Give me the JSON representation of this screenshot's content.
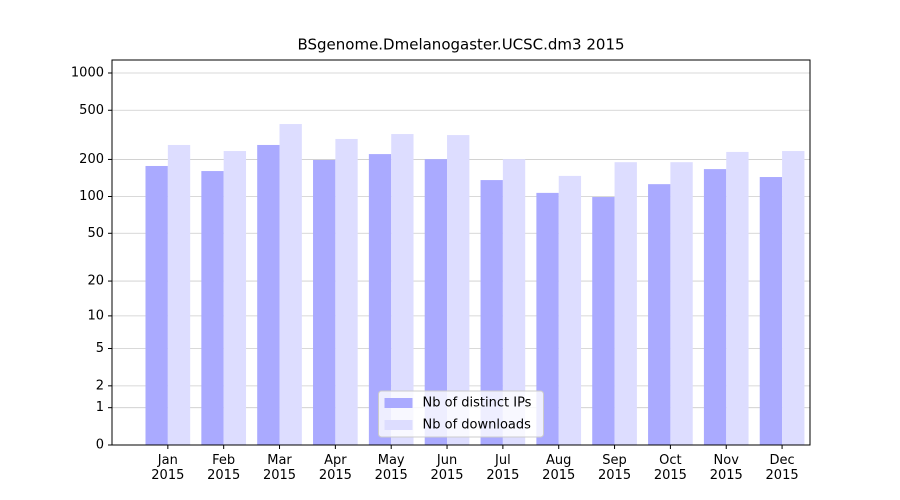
{
  "chart_data": {
    "type": "bar",
    "title": "BSgenome.Dmelanogaster.UCSC.dm3 2015",
    "categories": [
      "Jan\n2015",
      "Feb\n2015",
      "Mar\n2015",
      "Apr\n2015",
      "May\n2015",
      "Jun\n2015",
      "Jul\n2015",
      "Aug\n2015",
      "Sep\n2015",
      "Oct\n2015",
      "Nov\n2015",
      "Dec\n2015"
    ],
    "series": [
      {
        "name": "Nb of distinct IPs",
        "color": "#aaaaff",
        "values": [
          177,
          161,
          262,
          198,
          221,
          201,
          136,
          107,
          99,
          126,
          167,
          144
        ]
      },
      {
        "name": "Nb of downloads",
        "color": "#ddddff",
        "values": [
          262,
          234,
          387,
          293,
          321,
          315,
          201,
          147,
          190,
          190,
          230,
          234
        ]
      }
    ],
    "yscale": "log1p",
    "ylim": [
      0,
      1273
    ],
    "yticks": [
      0,
      1,
      2,
      5,
      10,
      20,
      50,
      100,
      200,
      500,
      1000
    ],
    "grid": true,
    "legend": "lower center"
  }
}
